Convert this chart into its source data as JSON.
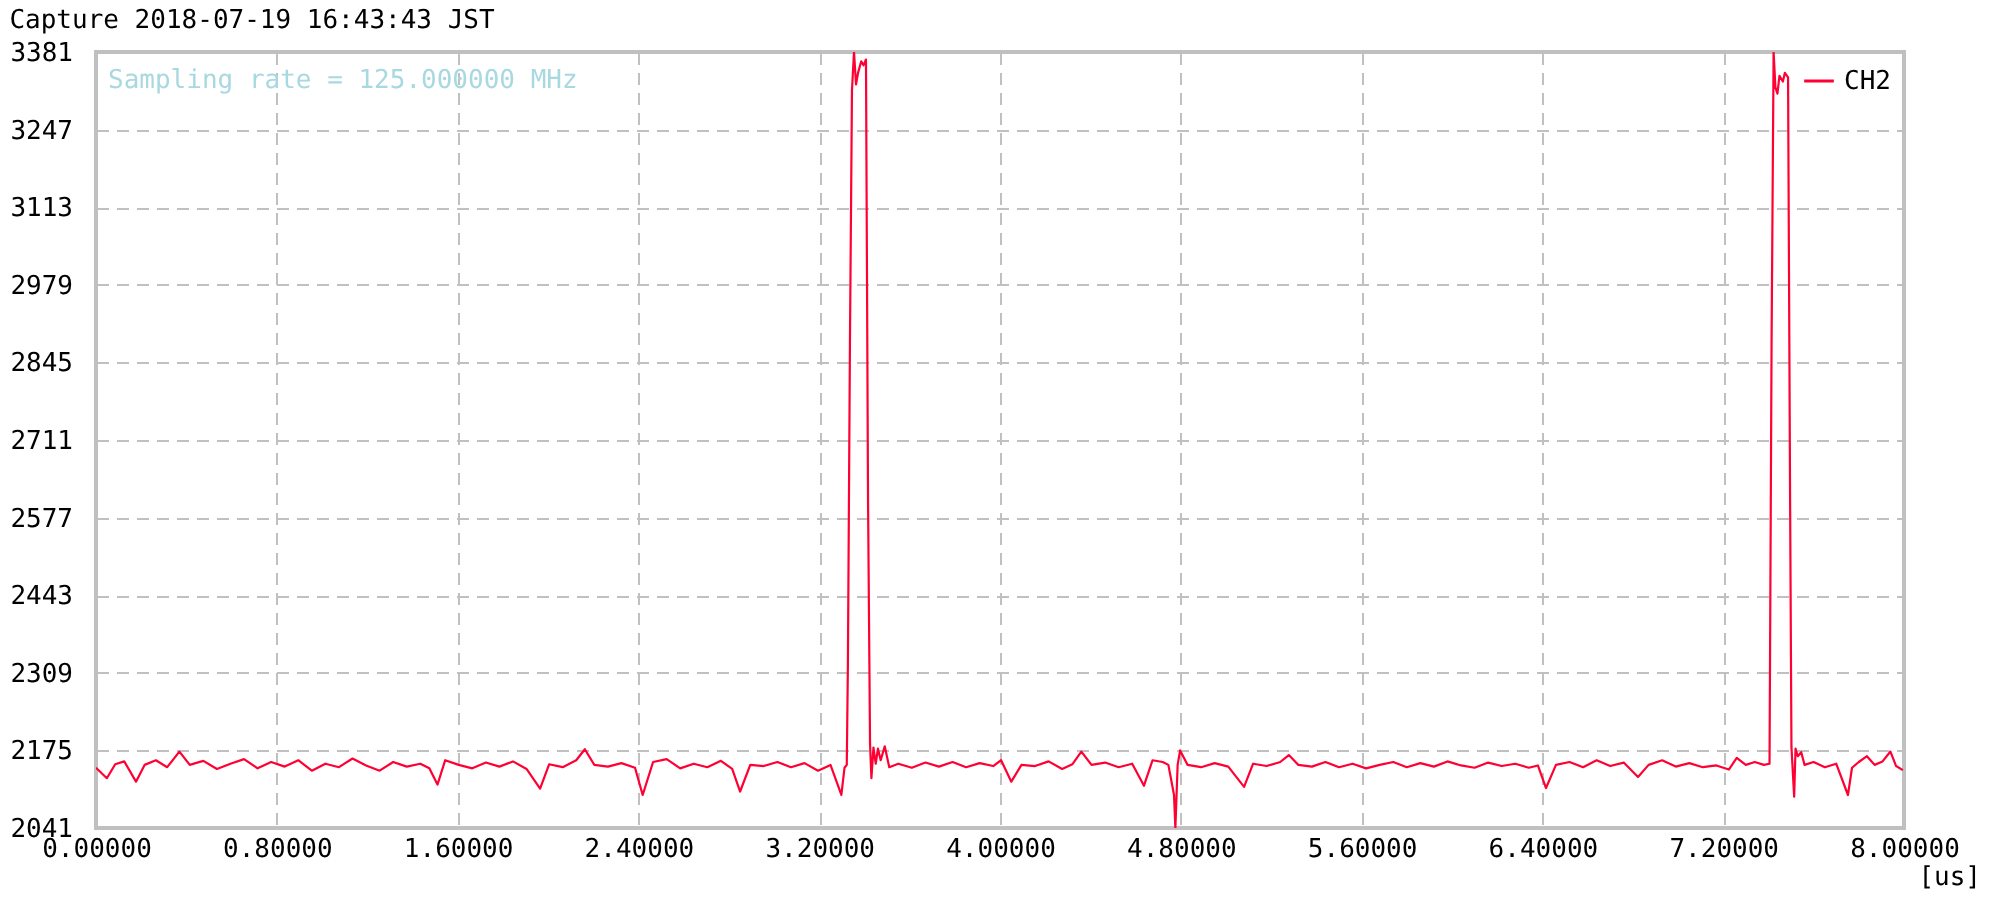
{
  "chart_data": {
    "type": "line",
    "title": "Capture 2018-07-19 16:43:43 JST",
    "xlabel": "[us]",
    "annotations": [
      "Sampling rate = 125.000000 MHz"
    ],
    "xlim": [
      0,
      8
    ],
    "xticks": [
      {
        "value": 0,
        "label": "0.00000"
      },
      {
        "value": 0.8,
        "label": "0.80000"
      },
      {
        "value": 1.6,
        "label": "1.60000"
      },
      {
        "value": 2.4,
        "label": "2.40000"
      },
      {
        "value": 3.2,
        "label": "3.20000"
      },
      {
        "value": 4.0,
        "label": "4.00000"
      },
      {
        "value": 4.8,
        "label": "4.80000"
      },
      {
        "value": 5.6,
        "label": "5.60000"
      },
      {
        "value": 6.4,
        "label": "6.40000"
      },
      {
        "value": 7.2,
        "label": "7.20000"
      },
      {
        "value": 8.0,
        "label": "8.00000"
      }
    ],
    "ylim": [
      2041,
      3381
    ],
    "yticks": [
      2041,
      2175,
      2309,
      2443,
      2577,
      2711,
      2845,
      2979,
      3113,
      3247,
      3381
    ],
    "grid": true,
    "legend": "top right",
    "x": [
      0.0,
      0.048,
      0.085,
      0.125,
      0.177,
      0.215,
      0.265,
      0.315,
      0.369,
      0.415,
      0.475,
      0.535,
      0.595,
      0.655,
      0.715,
      0.775,
      0.835,
      0.895,
      0.955,
      1.015,
      1.075,
      1.135,
      1.195,
      1.255,
      1.315,
      1.375,
      1.435,
      1.475,
      1.511,
      1.545,
      1.605,
      1.665,
      1.725,
      1.785,
      1.845,
      1.905,
      1.965,
      2.005,
      2.065,
      2.125,
      2.163,
      2.205,
      2.265,
      2.325,
      2.385,
      2.419,
      2.465,
      2.525,
      2.585,
      2.645,
      2.705,
      2.765,
      2.815,
      2.85,
      2.895,
      2.955,
      3.015,
      3.075,
      3.135,
      3.195,
      3.25,
      3.298,
      3.312,
      3.322,
      3.327,
      3.336,
      3.345,
      3.354,
      3.363,
      3.372,
      3.386,
      3.396,
      3.407,
      3.416,
      3.425,
      3.431,
      3.44,
      3.45,
      3.46,
      3.472,
      3.49,
      3.51,
      3.55,
      3.61,
      3.67,
      3.73,
      3.79,
      3.85,
      3.91,
      3.97,
      4.005,
      4.05,
      4.095,
      4.155,
      4.215,
      4.275,
      4.32,
      4.36,
      4.405,
      4.465,
      4.525,
      4.585,
      4.637,
      4.675,
      4.72,
      4.745,
      4.77,
      4.776,
      4.786,
      4.797,
      4.83,
      4.89,
      4.95,
      5.01,
      5.08,
      5.12,
      5.18,
      5.24,
      5.278,
      5.32,
      5.38,
      5.44,
      5.5,
      5.56,
      5.62,
      5.68,
      5.74,
      5.8,
      5.86,
      5.92,
      5.98,
      6.04,
      6.1,
      6.16,
      6.22,
      6.28,
      6.34,
      6.38,
      6.416,
      6.46,
      6.52,
      6.58,
      6.64,
      6.7,
      6.76,
      6.823,
      6.87,
      6.93,
      6.99,
      7.05,
      7.11,
      7.17,
      7.225,
      7.26,
      7.3,
      7.34,
      7.38,
      7.405,
      7.414,
      7.423,
      7.431,
      7.44,
      7.449,
      7.464,
      7.473,
      7.487,
      7.496,
      7.502,
      7.514,
      7.52,
      7.53,
      7.545,
      7.56,
      7.6,
      7.65,
      7.7,
      7.752,
      7.77,
      7.8,
      7.836,
      7.87,
      7.905,
      7.94,
      7.965,
      7.995
    ],
    "series": [
      {
        "name": "CH2",
        "color": "#ff0033",
        "values": [
          2145,
          2127,
          2151,
          2156,
          2121,
          2150,
          2158,
          2146,
          2173,
          2150,
          2157,
          2143,
          2152,
          2160,
          2144,
          2155,
          2147,
          2158,
          2140,
          2152,
          2146,
          2161,
          2149,
          2140,
          2155,
          2147,
          2152,
          2144,
          2116,
          2158,
          2150,
          2144,
          2154,
          2147,
          2156,
          2143,
          2109,
          2151,
          2146,
          2158,
          2177,
          2150,
          2147,
          2153,
          2145,
          2098,
          2155,
          2160,
          2144,
          2152,
          2146,
          2157,
          2143,
          2104,
          2150,
          2148,
          2155,
          2146,
          2153,
          2140,
          2150,
          2098,
          2145,
          2150,
          2324,
          2876,
          3315,
          3381,
          3325,
          3345,
          3365,
          3358,
          3368,
          2612,
          2186,
          2127,
          2180,
          2152,
          2178,
          2158,
          2182,
          2146,
          2152,
          2145,
          2154,
          2147,
          2155,
          2146,
          2153,
          2148,
          2158,
          2121,
          2150,
          2148,
          2156,
          2143,
          2151,
          2173,
          2150,
          2154,
          2146,
          2152,
          2114,
          2158,
          2155,
          2150,
          2098,
          2041,
          2150,
          2175,
          2150,
          2146,
          2153,
          2147,
          2112,
          2152,
          2148,
          2155,
          2167,
          2150,
          2147,
          2155,
          2146,
          2152,
          2144,
          2150,
          2155,
          2146,
          2153,
          2147,
          2156,
          2149,
          2145,
          2154,
          2148,
          2152,
          2145,
          2149,
          2110,
          2150,
          2155,
          2146,
          2158,
          2148,
          2154,
          2129,
          2150,
          2158,
          2147,
          2153,
          2146,
          2149,
          2142,
          2162,
          2150,
          2155,
          2150,
          2152,
          2876,
          3381,
          3320,
          3309,
          3340,
          3330,
          3345,
          3337,
          2609,
          2181,
          2095,
          2178,
          2165,
          2172,
          2150,
          2155,
          2146,
          2152,
          2098,
          2145,
          2155,
          2165,
          2150,
          2156,
          2173,
          2148,
          2141
        ]
      }
    ]
  }
}
